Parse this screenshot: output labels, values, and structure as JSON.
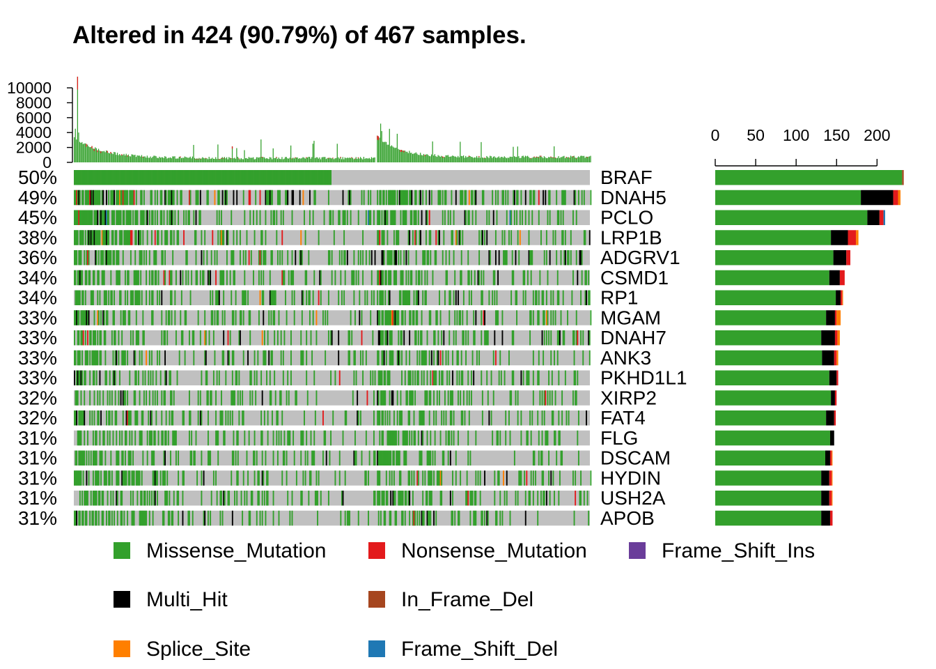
{
  "chart_data": {
    "type": "heatmap",
    "title": "Altered in 424 (90.79%) of 467 samples.",
    "top_axis": {
      "ticks": [
        0,
        2000,
        4000,
        6000,
        8000,
        10000
      ],
      "ylim": [
        0,
        11500
      ]
    },
    "right_axis": {
      "ticks": [
        0,
        50,
        100,
        150,
        200
      ],
      "xlim": [
        0,
        235
      ]
    },
    "genes": [
      {
        "name": "BRAF",
        "pct": "50%",
        "counts": {
          "Missense_Mutation": 231,
          "Multi_Hit": 0,
          "Nonsense_Mutation": 0,
          "Splice_Site": 0,
          "In_Frame_Del": 2,
          "Frame_Shift_Del": 0,
          "Frame_Shift_Ins": 0
        }
      },
      {
        "name": "DNAH5",
        "pct": "49%",
        "counts": {
          "Missense_Mutation": 180,
          "Multi_Hit": 40,
          "Nonsense_Mutation": 6,
          "Splice_Site": 3,
          "In_Frame_Del": 0,
          "Frame_Shift_Del": 0,
          "Frame_Shift_Ins": 0
        }
      },
      {
        "name": "PCLO",
        "pct": "45%",
        "counts": {
          "Missense_Mutation": 188,
          "Multi_Hit": 15,
          "Nonsense_Mutation": 5,
          "Splice_Site": 0,
          "In_Frame_Del": 0,
          "Frame_Shift_Del": 2,
          "Frame_Shift_Ins": 0
        }
      },
      {
        "name": "LRP1B",
        "pct": "38%",
        "counts": {
          "Missense_Mutation": 143,
          "Multi_Hit": 21,
          "Nonsense_Mutation": 10,
          "Splice_Site": 3,
          "In_Frame_Del": 0,
          "Frame_Shift_Del": 0,
          "Frame_Shift_Ins": 0
        }
      },
      {
        "name": "ADGRV1",
        "pct": "36%",
        "counts": {
          "Missense_Mutation": 146,
          "Multi_Hit": 16,
          "Nonsense_Mutation": 5,
          "Splice_Site": 0,
          "In_Frame_Del": 0,
          "Frame_Shift_Del": 0,
          "Frame_Shift_Ins": 0
        }
      },
      {
        "name": "CSMD1",
        "pct": "34%",
        "counts": {
          "Missense_Mutation": 141,
          "Multi_Hit": 13,
          "Nonsense_Mutation": 6,
          "Splice_Site": 0,
          "In_Frame_Del": 0,
          "Frame_Shift_Del": 0,
          "Frame_Shift_Ins": 0
        }
      },
      {
        "name": "RP1",
        "pct": "34%",
        "counts": {
          "Missense_Mutation": 149,
          "Multi_Hit": 6,
          "Nonsense_Mutation": 2,
          "Splice_Site": 1,
          "In_Frame_Del": 0,
          "Frame_Shift_Del": 0,
          "Frame_Shift_Ins": 0
        }
      },
      {
        "name": "MGAM",
        "pct": "33%",
        "counts": {
          "Missense_Mutation": 137,
          "Multi_Hit": 11,
          "Nonsense_Mutation": 2,
          "Splice_Site": 5,
          "In_Frame_Del": 0,
          "Frame_Shift_Del": 0,
          "Frame_Shift_Ins": 0
        }
      },
      {
        "name": "DNAH7",
        "pct": "33%",
        "counts": {
          "Missense_Mutation": 131,
          "Multi_Hit": 17,
          "Nonsense_Mutation": 3,
          "Splice_Site": 3,
          "In_Frame_Del": 0,
          "Frame_Shift_Del": 0,
          "Frame_Shift_Ins": 0
        }
      },
      {
        "name": "ANK3",
        "pct": "33%",
        "counts": {
          "Missense_Mutation": 132,
          "Multi_Hit": 15,
          "Nonsense_Mutation": 3,
          "Splice_Site": 2,
          "In_Frame_Del": 0,
          "Frame_Shift_Del": 0,
          "Frame_Shift_Ins": 0
        }
      },
      {
        "name": "PKHD1L1",
        "pct": "33%",
        "counts": {
          "Missense_Mutation": 141,
          "Multi_Hit": 9,
          "Nonsense_Mutation": 2,
          "Splice_Site": 0,
          "In_Frame_Del": 0,
          "Frame_Shift_Del": 0,
          "Frame_Shift_Ins": 0
        }
      },
      {
        "name": "XIRP2",
        "pct": "32%",
        "counts": {
          "Missense_Mutation": 143,
          "Multi_Hit": 5,
          "Nonsense_Mutation": 2,
          "Splice_Site": 0,
          "In_Frame_Del": 0,
          "Frame_Shift_Del": 0,
          "Frame_Shift_Ins": 0
        }
      },
      {
        "name": "FAT4",
        "pct": "32%",
        "counts": {
          "Missense_Mutation": 137,
          "Multi_Hit": 10,
          "Nonsense_Mutation": 2,
          "Splice_Site": 0,
          "In_Frame_Del": 0,
          "Frame_Shift_Del": 0,
          "Frame_Shift_Ins": 0
        }
      },
      {
        "name": "FLG",
        "pct": "31%",
        "counts": {
          "Missense_Mutation": 142,
          "Multi_Hit": 5,
          "Nonsense_Mutation": 0,
          "Splice_Site": 0,
          "In_Frame_Del": 0,
          "Frame_Shift_Del": 0,
          "Frame_Shift_Ins": 0
        }
      },
      {
        "name": "DSCAM",
        "pct": "31%",
        "counts": {
          "Missense_Mutation": 136,
          "Multi_Hit": 6,
          "Nonsense_Mutation": 2,
          "Splice_Site": 1,
          "In_Frame_Del": 0,
          "Frame_Shift_Del": 0,
          "Frame_Shift_Ins": 0
        }
      },
      {
        "name": "HYDIN",
        "pct": "31%",
        "counts": {
          "Missense_Mutation": 131,
          "Multi_Hit": 10,
          "Nonsense_Mutation": 3,
          "Splice_Site": 1,
          "In_Frame_Del": 0,
          "Frame_Shift_Del": 0,
          "Frame_Shift_Ins": 0
        }
      },
      {
        "name": "USH2A",
        "pct": "31%",
        "counts": {
          "Missense_Mutation": 131,
          "Multi_Hit": 10,
          "Nonsense_Mutation": 3,
          "Splice_Site": 1,
          "In_Frame_Del": 0,
          "Frame_Shift_Del": 0,
          "Frame_Shift_Ins": 0
        }
      },
      {
        "name": "APOB",
        "pct": "31%",
        "counts": {
          "Missense_Mutation": 131,
          "Multi_Hit": 11,
          "Nonsense_Mutation": 3,
          "Splice_Site": 0,
          "In_Frame_Del": 0,
          "Frame_Shift_Del": 0,
          "Frame_Shift_Ins": 0
        }
      }
    ],
    "legend": [
      {
        "name": "Missense_Mutation",
        "color": "#33A02C"
      },
      {
        "name": "Nonsense_Mutation",
        "color": "#E31A1C"
      },
      {
        "name": "Frame_Shift_Ins",
        "color": "#6A3D9A"
      },
      {
        "name": "Multi_Hit",
        "color": "#000000"
      },
      {
        "name": "In_Frame_Del",
        "color": "#A6461F"
      },
      {
        "name": "Splice_Site",
        "color": "#FF7F00"
      },
      {
        "name": "Frame_Shift_Del",
        "color": "#1F78B4"
      }
    ],
    "background_color": "#C0C0C0",
    "n_samples": 467,
    "n_altered": 424,
    "legend_placement": "bottom"
  }
}
